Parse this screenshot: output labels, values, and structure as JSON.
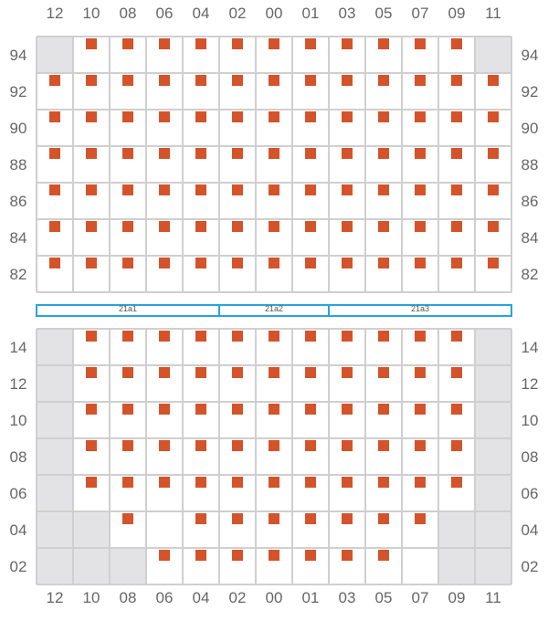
{
  "columns": [
    "12",
    "10",
    "08",
    "06",
    "04",
    "02",
    "00",
    "01",
    "03",
    "05",
    "07",
    "09",
    "11"
  ],
  "top_block": {
    "rows": [
      {
        "label": "94",
        "cells": "-xxxxxxxxxxx-"
      },
      {
        "label": "92",
        "cells": "xxxxxxxxxxxxx"
      },
      {
        "label": "90",
        "cells": "xxxxxxxxxxxxx"
      },
      {
        "label": "88",
        "cells": "xxxxxxxxxxxxx"
      },
      {
        "label": "86",
        "cells": "xxxxxxxxxxxxx"
      },
      {
        "label": "84",
        "cells": "xxxxxxxxxxxxx"
      },
      {
        "label": "82",
        "cells": "xxxxxxxxxxxxx"
      }
    ]
  },
  "aisle_segments": [
    {
      "label": "21a1",
      "col_span": 5
    },
    {
      "label": "21a2",
      "col_span": 3
    },
    {
      "label": "21a3",
      "col_span": 5
    }
  ],
  "bottom_block": {
    "rows": [
      {
        "label": "14",
        "cells": "-xxxxxxxxxxx-"
      },
      {
        "label": "12",
        "cells": "-xxxxxxxxxxx-"
      },
      {
        "label": "10",
        "cells": "-xxxxxxxxxxx-"
      },
      {
        "label": "08",
        "cells": "-xxxxxxxxxxx-"
      },
      {
        "label": "06",
        "cells": "-xxxxxxxxxxx-"
      },
      {
        "label": "04",
        "cells": "--x.xxxxxxx--"
      },
      {
        "label": "02",
        "cells": "---xxxxxxx.--"
      }
    ]
  },
  "legend_codes": {
    "x": "occupied",
    "-": "unavailable",
    ".": "empty"
  },
  "colors": {
    "occupied_marker": "#d4532a",
    "unavailable_cell": "#e3e3e5",
    "grid_line": "#cfcfcf",
    "aisle_border": "#29a3dd",
    "label_text": "#666666"
  }
}
